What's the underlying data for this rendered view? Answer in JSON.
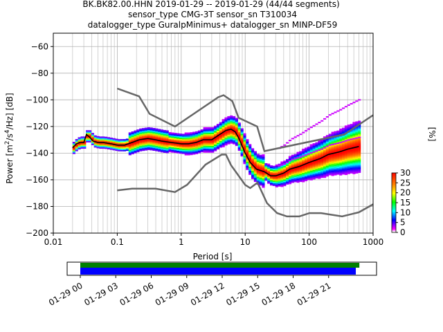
{
  "title_lines": [
    "BK.BK82.00.HHN   2019-01-29 -- 2019-01-29  (44/44 segments)",
    "sensor_type CMG-3T sensor_sn T310034",
    "datalogger_type GuralpMinimus+ datalogger_sn MINP-DF59"
  ],
  "chart_data": {
    "type": "line",
    "xlabel": "Period [s]",
    "ylabel": "Power [m²/s⁴/Hz] [dB]",
    "x_scale": "log",
    "xlim": [
      0.01,
      1000
    ],
    "ylim": [
      -200,
      -50
    ],
    "grid": true,
    "x_tick_labels": [
      "0.01",
      "0.1",
      "1",
      "10",
      "100",
      "1000"
    ],
    "y_tick_values": [
      -200,
      -180,
      -160,
      -140,
      -120,
      -100,
      -80,
      -60
    ],
    "nlnm": {
      "x": [
        0.1,
        0.17,
        0.4,
        0.8,
        1.24,
        2.4,
        4.3,
        5.0,
        6.0,
        10.0,
        12.0,
        15.6,
        21.9,
        31.6,
        45.0,
        70.0,
        101.0,
        154.0,
        328.0,
        600.0,
        1000.0
      ],
      "y": [
        -168.0,
        -166.7,
        -166.7,
        -169.2,
        -163.7,
        -148.6,
        -141.1,
        -141.1,
        -149.0,
        -163.8,
        -166.2,
        -162.1,
        -177.5,
        -185.0,
        -187.5,
        -187.5,
        -185.0,
        -185.0,
        -187.5,
        -184.4,
        -178.4
      ]
    },
    "nhnm": {
      "x": [
        0.1,
        0.22,
        0.32,
        0.8,
        3.8,
        4.6,
        6.3,
        7.9,
        15.4,
        20.0,
        354.8,
        1000.0
      ],
      "y": [
        -91.5,
        -97.4,
        -110.5,
        -120.0,
        -98.0,
        -96.5,
        -101.0,
        -113.5,
        -120.0,
        -138.5,
        -126.0,
        -111.5
      ]
    },
    "mean_curve": {
      "x": [
        0.02,
        0.023,
        0.026,
        0.03,
        0.033,
        0.037,
        0.042,
        0.05,
        0.06,
        0.08,
        0.1,
        0.13,
        0.17,
        0.22,
        0.3,
        0.4,
        0.5,
        0.7,
        1.0,
        1.3,
        1.7,
        2.2,
        3.0,
        4.0,
        5.0,
        6.0,
        7.0,
        8.0,
        10.0,
        12.0,
        15.0,
        20.0,
        25.0,
        30.0,
        40.0,
        50.0,
        70.0,
        100.0,
        150.0,
        200.0,
        300.0,
        400.0,
        600.0
      ],
      "y": [
        -136,
        -133,
        -132,
        -132,
        -126,
        -128,
        -131,
        -132,
        -132,
        -133,
        -134,
        -134,
        -132,
        -130,
        -129,
        -130,
        -131,
        -132,
        -133,
        -133,
        -132,
        -130,
        -130,
        -126,
        -123,
        -122,
        -124,
        -129,
        -140,
        -147,
        -152,
        -154,
        -157,
        -157,
        -155,
        -152,
        -150,
        -147,
        -144,
        -141,
        -139,
        -137,
        -135
      ]
    },
    "pdf_colorbar": {
      "label": "[%]",
      "ticks": [
        0,
        5,
        10,
        15,
        20,
        25,
        30
      ],
      "range": [
        0,
        30
      ]
    },
    "timeline": {
      "tick_labels": [
        "01-29 00",
        "01-29 03",
        "01-29 06",
        "01-29 09",
        "01-29 12",
        "01-29 15",
        "01-29 18",
        "01-29 21"
      ],
      "data_availability_color": "#008000",
      "psd_coverage_color": "#0000ff"
    }
  }
}
